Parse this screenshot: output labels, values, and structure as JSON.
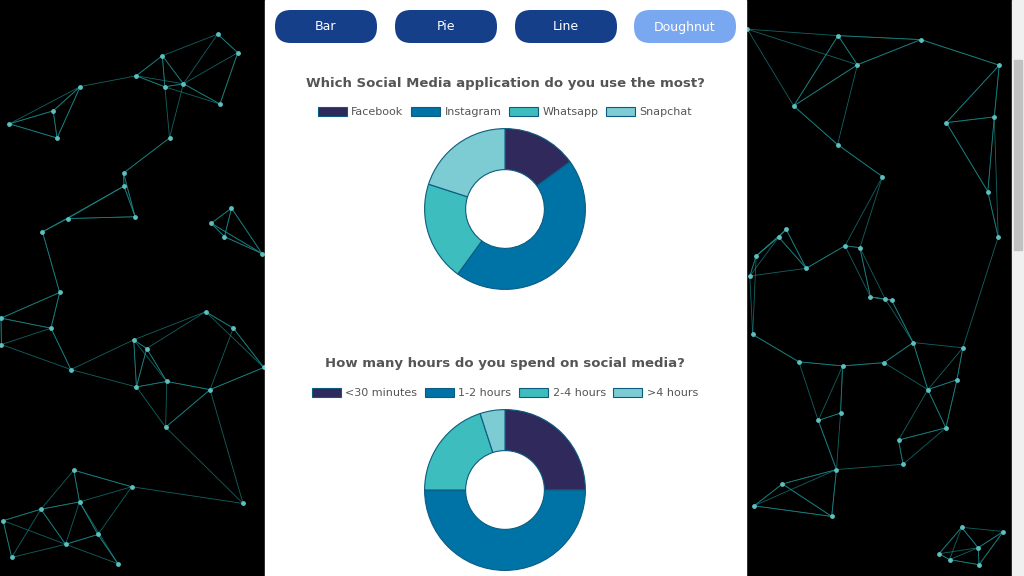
{
  "buttons": [
    "Bar",
    "Pie",
    "Line",
    "Doughnut"
  ],
  "chart_data": [
    {
      "type": "doughnut",
      "title": "Which Social Media application do you use the most?",
      "categories": [
        "Facebook",
        "Instagram",
        "Whatsapp",
        "Snapchat"
      ],
      "values": [
        15,
        45,
        20,
        20
      ],
      "colors": [
        "#30295b",
        "#0073a6",
        "#3dbdbd",
        "#7dcbd3"
      ],
      "legend": "top"
    },
    {
      "type": "doughnut",
      "title": "How many hours do you spend on social media?",
      "categories": [
        "<30 minutes",
        "1-2 hours",
        "2-4 hours",
        ">4 hours"
      ],
      "values": [
        25,
        50,
        20,
        5
      ],
      "colors": [
        "#30295b",
        "#0073a6",
        "#3dbdbd",
        "#7dcbd3"
      ],
      "legend": "top"
    }
  ]
}
